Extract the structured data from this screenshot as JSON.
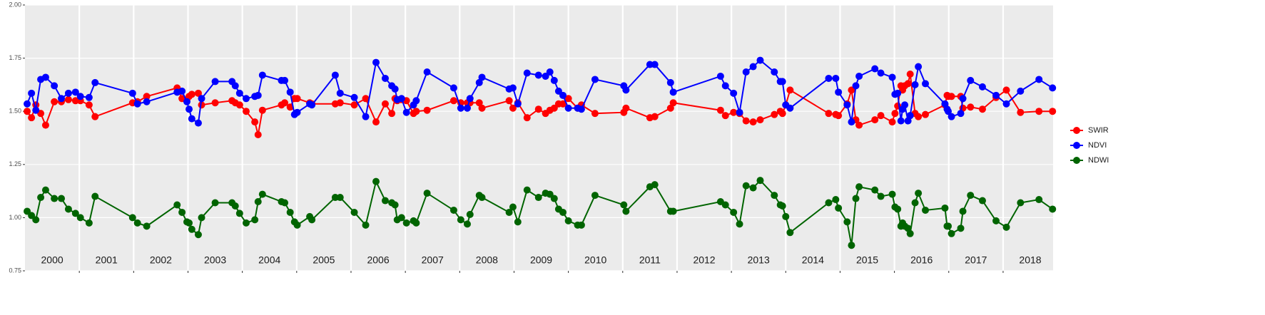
{
  "chart_data": {
    "type": "line",
    "x": [
      2000.04,
      2000.12,
      2000.2,
      2000.29,
      2000.38,
      2000.54,
      2000.67,
      2000.8,
      2000.93,
      2001.02,
      2001.18,
      2001.29,
      2001.98,
      2002.07,
      2002.24,
      2002.8,
      2002.89,
      2002.98,
      2003.02,
      2003.07,
      2003.19,
      2003.25,
      2003.5,
      2003.81,
      2003.87,
      2003.95,
      2004.07,
      2004.23,
      2004.29,
      2004.37,
      2004.72,
      2004.78,
      2004.88,
      2004.96,
      2005.01,
      2005.24,
      2005.28,
      2005.71,
      2005.8,
      2006.06,
      2006.27,
      2006.46,
      2006.63,
      2006.75,
      2006.81,
      2006.85,
      2006.93,
      2007.02,
      2007.15,
      2007.2,
      2007.4,
      2007.89,
      2008.02,
      2008.14,
      2008.19,
      2008.36,
      2008.41,
      2008.91,
      2008.98,
      2009.07,
      2009.24,
      2009.45,
      2009.58,
      2009.66,
      2009.74,
      2009.82,
      2009.9,
      2010.0,
      2010.17,
      2010.24,
      2010.49,
      2011.02,
      2011.06,
      2011.5,
      2011.59,
      2011.88,
      2011.93,
      2012.8,
      2012.89,
      2013.04,
      2013.15,
      2013.27,
      2013.4,
      2013.53,
      2013.79,
      2013.9,
      2013.94,
      2014.0,
      2014.08,
      2014.79,
      2014.92,
      2014.97,
      2015.13,
      2015.21,
      2015.29,
      2015.35,
      2015.64,
      2015.75,
      2015.96,
      2016.01,
      2016.06,
      2016.12,
      2016.15,
      2016.19,
      2016.25,
      2016.29,
      2016.38,
      2016.44,
      2016.57,
      2016.93,
      2016.97,
      2016.99,
      2017.05,
      2017.22,
      2017.26,
      2017.4,
      2017.62,
      2017.87,
      2018.06,
      2018.32,
      2018.66,
      2018.91
    ],
    "series": [
      {
        "name": "SWIR",
        "color": "#ff0000",
        "values": [
          1.5,
          1.47,
          1.53,
          1.49,
          1.435,
          1.545,
          1.545,
          1.555,
          1.55,
          1.55,
          1.53,
          1.475,
          1.54,
          1.545,
          1.57,
          1.61,
          1.56,
          1.555,
          1.57,
          1.58,
          1.585,
          1.53,
          1.54,
          1.55,
          1.54,
          1.53,
          1.5,
          1.45,
          1.39,
          1.505,
          1.53,
          1.54,
          1.52,
          1.56,
          1.56,
          1.54,
          1.535,
          1.535,
          1.54,
          1.53,
          1.56,
          1.45,
          1.535,
          1.49,
          1.56,
          1.55,
          1.555,
          1.55,
          1.49,
          1.5,
          1.505,
          1.55,
          1.54,
          1.54,
          1.54,
          1.54,
          1.515,
          1.55,
          1.515,
          1.54,
          1.47,
          1.51,
          1.49,
          1.505,
          1.515,
          1.535,
          1.535,
          1.56,
          1.515,
          1.53,
          1.49,
          1.495,
          1.515,
          1.47,
          1.475,
          1.515,
          1.54,
          1.505,
          1.48,
          1.495,
          1.49,
          1.455,
          1.45,
          1.46,
          1.485,
          1.5,
          1.49,
          1.53,
          1.6,
          1.49,
          1.485,
          1.48,
          1.535,
          1.6,
          1.46,
          1.435,
          1.46,
          1.48,
          1.45,
          1.49,
          1.525,
          1.62,
          1.6,
          1.62,
          1.63,
          1.675,
          1.49,
          1.475,
          1.485,
          1.53,
          1.575,
          1.57,
          1.57,
          1.57,
          1.515,
          1.52,
          1.51,
          1.565,
          1.6,
          1.495,
          1.5,
          1.5
        ]
      },
      {
        "name": "NDVI",
        "color": "#0000ff",
        "values": [
          1.535,
          1.585,
          1.505,
          1.65,
          1.66,
          1.62,
          1.56,
          1.585,
          1.59,
          1.57,
          1.565,
          1.635,
          1.585,
          1.535,
          1.545,
          1.59,
          1.595,
          1.545,
          1.51,
          1.465,
          1.445,
          1.56,
          1.64,
          1.64,
          1.62,
          1.585,
          1.56,
          1.57,
          1.575,
          1.67,
          1.645,
          1.645,
          1.59,
          1.485,
          1.495,
          1.535,
          1.53,
          1.67,
          1.585,
          1.565,
          1.475,
          1.73,
          1.655,
          1.62,
          1.605,
          1.555,
          1.56,
          1.495,
          1.53,
          1.55,
          1.685,
          1.61,
          1.515,
          1.515,
          1.56,
          1.635,
          1.66,
          1.605,
          1.61,
          1.535,
          1.68,
          1.67,
          1.665,
          1.685,
          1.645,
          1.595,
          1.575,
          1.515,
          1.515,
          1.51,
          1.65,
          1.62,
          1.6,
          1.72,
          1.72,
          1.635,
          1.59,
          1.665,
          1.62,
          1.585,
          1.495,
          1.685,
          1.71,
          1.74,
          1.685,
          1.64,
          1.64,
          1.53,
          1.515,
          1.655,
          1.655,
          1.59,
          1.53,
          1.45,
          1.62,
          1.665,
          1.7,
          1.68,
          1.66,
          1.58,
          1.585,
          1.455,
          1.51,
          1.53,
          1.455,
          1.48,
          1.625,
          1.71,
          1.63,
          1.535,
          1.51,
          1.5,
          1.475,
          1.49,
          1.56,
          1.645,
          1.615,
          1.575,
          1.535,
          1.595,
          1.65,
          1.61
        ]
      },
      {
        "name": "NDWI",
        "color": "#006400",
        "values": [
          1.03,
          1.01,
          0.99,
          1.095,
          1.13,
          1.09,
          1.09,
          1.04,
          1.02,
          1.0,
          0.975,
          1.1,
          1.0,
          0.975,
          0.96,
          1.06,
          1.025,
          0.98,
          0.975,
          0.945,
          0.92,
          1.0,
          1.07,
          1.07,
          1.055,
          1.02,
          0.975,
          0.99,
          1.075,
          1.11,
          1.075,
          1.07,
          1.025,
          0.98,
          0.965,
          1.005,
          0.99,
          1.095,
          1.095,
          1.025,
          0.965,
          1.17,
          1.08,
          1.07,
          1.06,
          0.99,
          1.0,
          0.975,
          0.985,
          0.975,
          1.115,
          1.035,
          0.99,
          0.97,
          1.015,
          1.105,
          1.095,
          1.025,
          1.05,
          0.98,
          1.13,
          1.095,
          1.115,
          1.11,
          1.09,
          1.04,
          1.025,
          0.985,
          0.965,
          0.965,
          1.105,
          1.06,
          1.03,
          1.145,
          1.155,
          1.03,
          1.03,
          1.075,
          1.06,
          1.025,
          0.97,
          1.15,
          1.14,
          1.175,
          1.105,
          1.06,
          1.055,
          1.005,
          0.93,
          1.07,
          1.085,
          1.045,
          0.98,
          0.87,
          1.09,
          1.145,
          1.13,
          1.1,
          1.11,
          1.05,
          1.04,
          0.96,
          0.975,
          0.96,
          0.95,
          0.925,
          1.07,
          1.115,
          1.035,
          1.045,
          0.96,
          0.96,
          0.925,
          0.95,
          1.03,
          1.105,
          1.08,
          0.985,
          0.955,
          1.07,
          1.085,
          1.04
        ]
      }
    ],
    "xlim": [
      2000,
      2018.92
    ],
    "xticks": [
      {
        "value": 2000.5,
        "label": "2000"
      },
      {
        "value": 2001.5,
        "label": "2001"
      },
      {
        "value": 2002.5,
        "label": "2002"
      },
      {
        "value": 2003.5,
        "label": "2003"
      },
      {
        "value": 2004.5,
        "label": "2004"
      },
      {
        "value": 2005.5,
        "label": "2005"
      },
      {
        "value": 2006.5,
        "label": "2006"
      },
      {
        "value": 2007.5,
        "label": "2007"
      },
      {
        "value": 2008.5,
        "label": "2008"
      },
      {
        "value": 2009.5,
        "label": "2009"
      },
      {
        "value": 2010.5,
        "label": "2010"
      },
      {
        "value": 2011.5,
        "label": "2011"
      },
      {
        "value": 2012.5,
        "label": "2012"
      },
      {
        "value": 2013.5,
        "label": "2013"
      },
      {
        "value": 2014.5,
        "label": "2014"
      },
      {
        "value": 2015.5,
        "label": "2015"
      },
      {
        "value": 2016.5,
        "label": "2016"
      },
      {
        "value": 2017.5,
        "label": "2017"
      },
      {
        "value": 2018.5,
        "label": "2018"
      }
    ],
    "xgrid": [
      2001,
      2002,
      2003,
      2004,
      2005,
      2006,
      2007,
      2008,
      2009,
      2010,
      2011,
      2012,
      2013,
      2014,
      2015,
      2016,
      2017,
      2018
    ],
    "ylim": [
      0.75,
      2.0
    ],
    "yticks": [
      {
        "value": 0.75,
        "label": "0.75"
      },
      {
        "value": 1.0,
        "label": "1.00"
      },
      {
        "value": 1.25,
        "label": "1.25"
      },
      {
        "value": 1.5,
        "label": "1.50"
      },
      {
        "value": 1.75,
        "label": "1.75"
      },
      {
        "value": 2.0,
        "label": "2.00"
      }
    ],
    "grid": true,
    "legend": "right"
  }
}
